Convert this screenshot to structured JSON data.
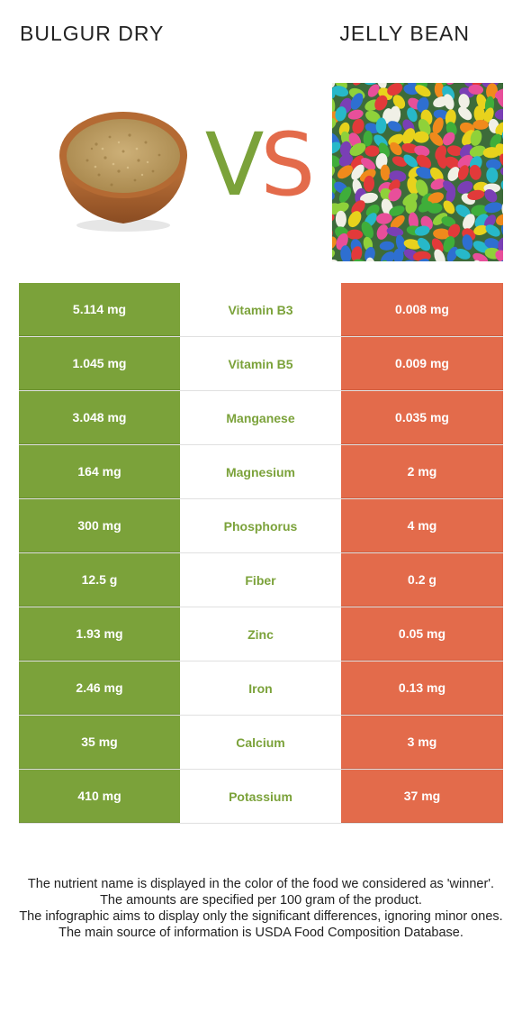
{
  "header": {
    "left_food": "BULGUR DRY",
    "vs_v": "V",
    "vs_s": "S",
    "right_food": "JELLY BEAN"
  },
  "colors": {
    "winner_left": "#7ba23a",
    "winner_right": "#e36b4b"
  },
  "rows": [
    {
      "left": "5.114 mg",
      "nutrient": "Vitamin B3",
      "right": "0.008 mg"
    },
    {
      "left": "1.045 mg",
      "nutrient": "Vitamin B5",
      "right": "0.009 mg"
    },
    {
      "left": "3.048 mg",
      "nutrient": "Manganese",
      "right": "0.035 mg"
    },
    {
      "left": "164 mg",
      "nutrient": "Magnesium",
      "right": "2 mg"
    },
    {
      "left": "300 mg",
      "nutrient": "Phosphorus",
      "right": "4 mg"
    },
    {
      "left": "12.5 g",
      "nutrient": "Fiber",
      "right": "0.2 g"
    },
    {
      "left": "1.93 mg",
      "nutrient": "Zinc",
      "right": "0.05 mg"
    },
    {
      "left": "2.46 mg",
      "nutrient": "Iron",
      "right": "0.13 mg"
    },
    {
      "left": "35 mg",
      "nutrient": "Calcium",
      "right": "3 mg"
    },
    {
      "left": "410 mg",
      "nutrient": "Potassium",
      "right": "37 mg"
    }
  ],
  "footer": [
    "The nutrient name is displayed in the color of the food we considered as 'winner'.",
    "The amounts are specified per 100 gram of the product.",
    "The infographic aims to display only the significant differences, ignoring minor ones.",
    "The main source of information is USDA Food Composition Database."
  ]
}
